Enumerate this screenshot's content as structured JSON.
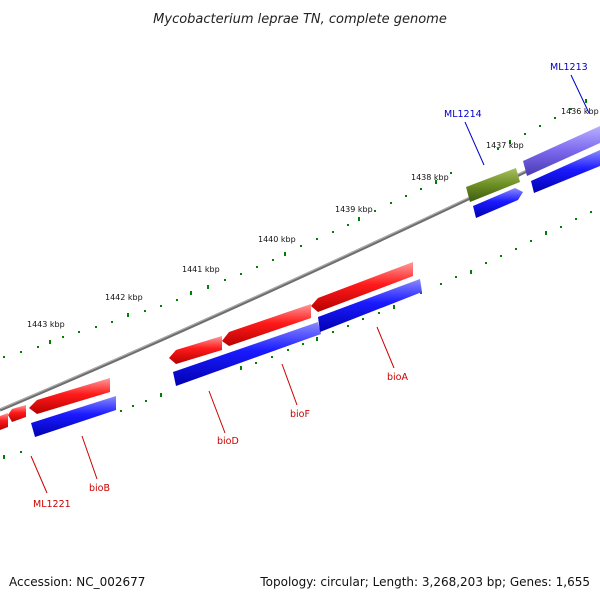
{
  "title": "Mycobacterium leprae TN, complete genome",
  "footer": {
    "accession": "Accession: NC_002677",
    "summary": "Topology: circular; Length: 3,268,203 bp; Genes: 1,655"
  },
  "ticks": [
    {
      "label": "1443 kbp"
    },
    {
      "label": "1442 kbp"
    },
    {
      "label": "1441 kbp"
    },
    {
      "label": "1440 kbp"
    },
    {
      "label": "1439 kbp"
    },
    {
      "label": "1438 kbp"
    },
    {
      "label": "1437 kbp"
    },
    {
      "label": "1436 kbp"
    }
  ],
  "gene_labels": [
    {
      "label": "ML1221",
      "color": "#cc0000"
    },
    {
      "label": "bioB",
      "color": "#cc0000"
    },
    {
      "label": "bioD",
      "color": "#cc0000"
    },
    {
      "label": "bioF",
      "color": "#cc0000"
    },
    {
      "label": "bioA",
      "color": "#cc0000"
    },
    {
      "label": "ML1214",
      "color": "#0000cc"
    },
    {
      "label": "ML1213",
      "color": "#0000cc"
    }
  ],
  "colors": {
    "forward_gene": "#ff0000",
    "cds": "#0000ff",
    "olive_feature": "#6b8e23",
    "purple_feature": "#7b68ee",
    "backbone": "#808080",
    "tick_marks": "#008000"
  }
}
